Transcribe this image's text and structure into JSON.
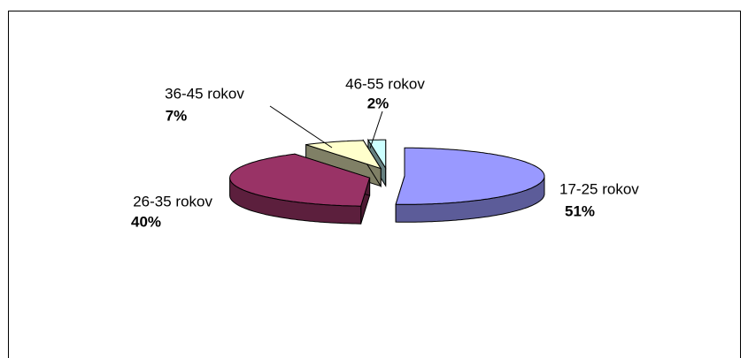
{
  "chart_data": {
    "type": "pie",
    "categories": [
      "17-25 rokov",
      "26-35 rokov",
      "36-45 rokov",
      "46-55 rokov"
    ],
    "values": [
      51,
      40,
      7,
      2
    ],
    "value_labels": [
      "51%",
      "40%",
      "7%",
      "2%"
    ],
    "colors": [
      "#9999ff",
      "#993366",
      "#ffffcc",
      "#ccffff"
    ]
  }
}
